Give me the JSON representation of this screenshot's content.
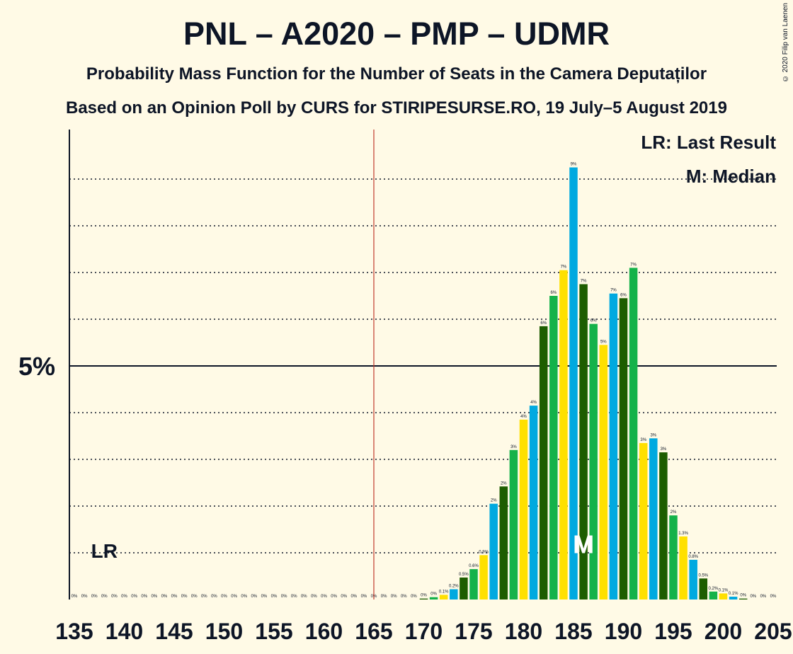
{
  "title": "PNL – A2020 – PMP – UDMR",
  "subtitle": "Probability Mass Function for the Number of Seats in the Camera Deputaților",
  "source": "Based on an Opinion Poll by CURS for STIRIPESURSE.RO, 19 July–5 August 2019",
  "copyright": "© 2020 Filip van Laenen",
  "legend": {
    "last_result": "LR: Last Result",
    "median": "M: Median"
  },
  "markers": {
    "last_result_label": "LR",
    "median_label": "M"
  },
  "colors": {
    "background": "#fffae6",
    "text": "#0d1526",
    "last_result_line": "#c0392b",
    "bar_palette": [
      "#ffe000",
      "#00a9e0",
      "#1d5d00",
      "#14b24a"
    ]
  },
  "chart_data": {
    "type": "bar",
    "x_start": 135,
    "x_end": 205,
    "x_ticks": [
      135,
      140,
      145,
      150,
      155,
      160,
      165,
      170,
      175,
      180,
      185,
      190,
      195,
      200,
      205
    ],
    "ylim": [
      0,
      10
    ],
    "y_major_label": "5%",
    "y_major_value": 5,
    "y_gridlines": [
      1,
      2,
      3,
      4,
      6,
      7,
      8,
      9
    ],
    "last_result_seat": 165,
    "lr_label_seat": 138,
    "median_seat": 186,
    "grid": true,
    "legend_position": "top-right",
    "values": [
      0,
      0,
      0,
      0,
      0,
      0,
      0,
      0,
      0,
      0,
      0,
      0,
      0,
      0,
      0,
      0,
      0,
      0,
      0,
      0,
      0,
      0,
      0,
      0,
      0,
      0,
      0,
      0,
      0,
      0,
      0,
      0,
      0,
      0,
      0,
      0.02,
      0.05,
      0.1,
      0.22,
      0.47,
      0.65,
      0.95,
      2.05,
      2.42,
      3.2,
      3.85,
      4.15,
      5.85,
      6.5,
      7.05,
      9.25,
      6.75,
      5.9,
      5.45,
      6.55,
      6.45,
      7.1,
      3.35,
      3.45,
      3.15,
      1.8,
      1.35,
      0.85,
      0.45,
      0.17,
      0.13,
      0.06,
      0.02,
      0,
      0,
      0
    ],
    "labels": [
      "0%",
      "0%",
      "0%",
      "0%",
      "0%",
      "0%",
      "0%",
      "0%",
      "0%",
      "0%",
      "0%",
      "0%",
      "0%",
      "0%",
      "0%",
      "0%",
      "0%",
      "0%",
      "0%",
      "0%",
      "0%",
      "0%",
      "0%",
      "0%",
      "0%",
      "0%",
      "0%",
      "0%",
      "0%",
      "0%",
      "0%",
      "0%",
      "0%",
      "0%",
      "0%",
      "0%",
      "0%",
      "0.1%",
      "0.2%",
      "0.5%",
      "0.6%",
      "0.9%",
      "2%",
      "2%",
      "3%",
      "4%",
      "4%",
      "6%",
      "6%",
      "7%",
      "9%",
      "7%",
      "6%",
      "5%",
      "7%",
      "6%",
      "7%",
      "3%",
      "3%",
      "3%",
      "2%",
      "1.3%",
      "0.8%",
      "0.5%",
      "0.2%",
      "0.1%",
      "0.1%",
      "0%",
      "0%",
      "0%",
      "0%"
    ]
  }
}
